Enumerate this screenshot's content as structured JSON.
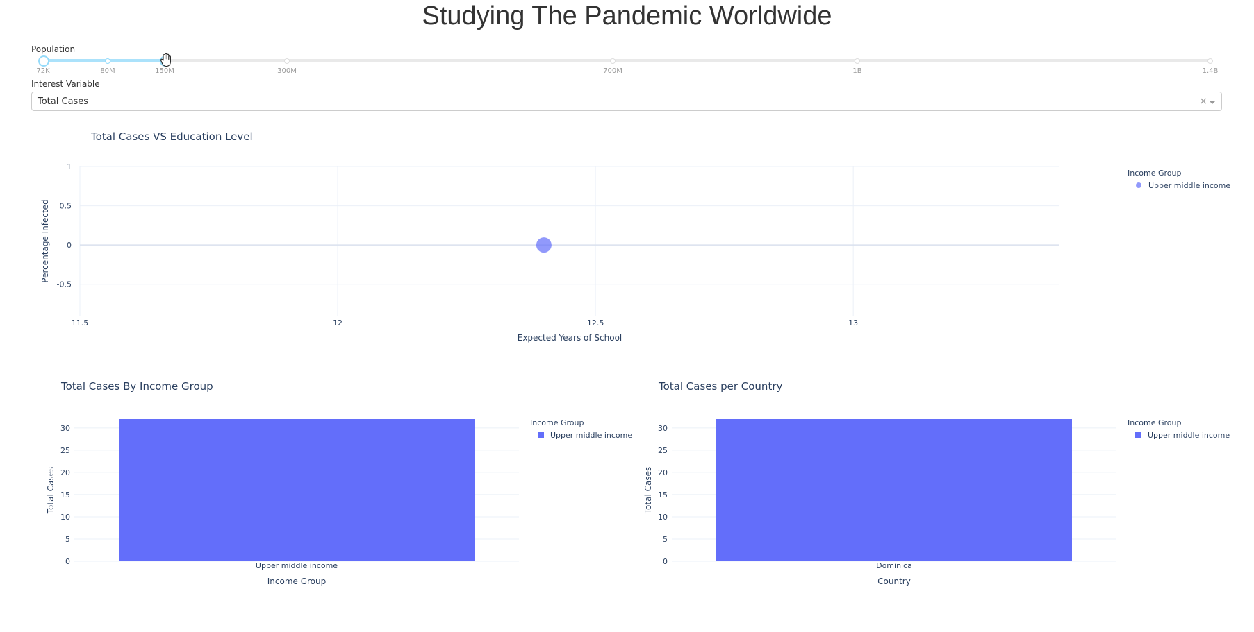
{
  "page": {
    "title": "Studying The Pandemic Worldwide"
  },
  "population_filter": {
    "label": "Population",
    "marks": [
      "72K",
      "80M",
      "150M",
      "300M",
      "700M",
      "1B",
      "1.4B"
    ],
    "selected_range": [
      "72K",
      "150M"
    ]
  },
  "interest_variable": {
    "label": "Interest Variable",
    "value": "Total Cases",
    "clear_symbol": "×"
  },
  "colors": {
    "series": "#636efa",
    "grid": "#ebf0f8",
    "slider_track": "#abe2fb"
  },
  "chart_data": [
    {
      "type": "scatter",
      "title": "Total Cases VS Education Level",
      "xlabel": "Expected Years of School",
      "ylabel": "Percentage Infected",
      "xlim": [
        11.5,
        13.4
      ],
      "ylim": [
        -0.9,
        1
      ],
      "x_ticks": [
        11.5,
        12,
        12.5,
        13
      ],
      "y_ticks": [
        1,
        0.5,
        0,
        -0.5
      ],
      "legend_title": "Income Group",
      "legend_position": "top-right",
      "grid": true,
      "series": [
        {
          "name": "Upper middle income",
          "x": [
            12.4
          ],
          "y": [
            0
          ]
        }
      ]
    },
    {
      "type": "bar",
      "title": "Total Cases By Income Group",
      "xlabel": "Income Group",
      "ylabel": "Total Cases",
      "categories": [
        "Upper middle income"
      ],
      "ylim": [
        0,
        32
      ],
      "y_ticks": [
        0,
        5,
        10,
        15,
        20,
        25,
        30
      ],
      "legend_title": "Income Group",
      "legend_position": "top-right",
      "grid": true,
      "series": [
        {
          "name": "Upper middle income",
          "values": [
            32
          ]
        }
      ]
    },
    {
      "type": "bar",
      "title": "Total Cases per Country",
      "xlabel": "Country",
      "ylabel": "Total Cases",
      "categories": [
        "Dominica"
      ],
      "ylim": [
        0,
        32
      ],
      "y_ticks": [
        0,
        5,
        10,
        15,
        20,
        25,
        30
      ],
      "legend_title": "Income Group",
      "legend_position": "top-right",
      "grid": true,
      "series": [
        {
          "name": "Upper middle income",
          "values": [
            32
          ]
        }
      ]
    }
  ]
}
